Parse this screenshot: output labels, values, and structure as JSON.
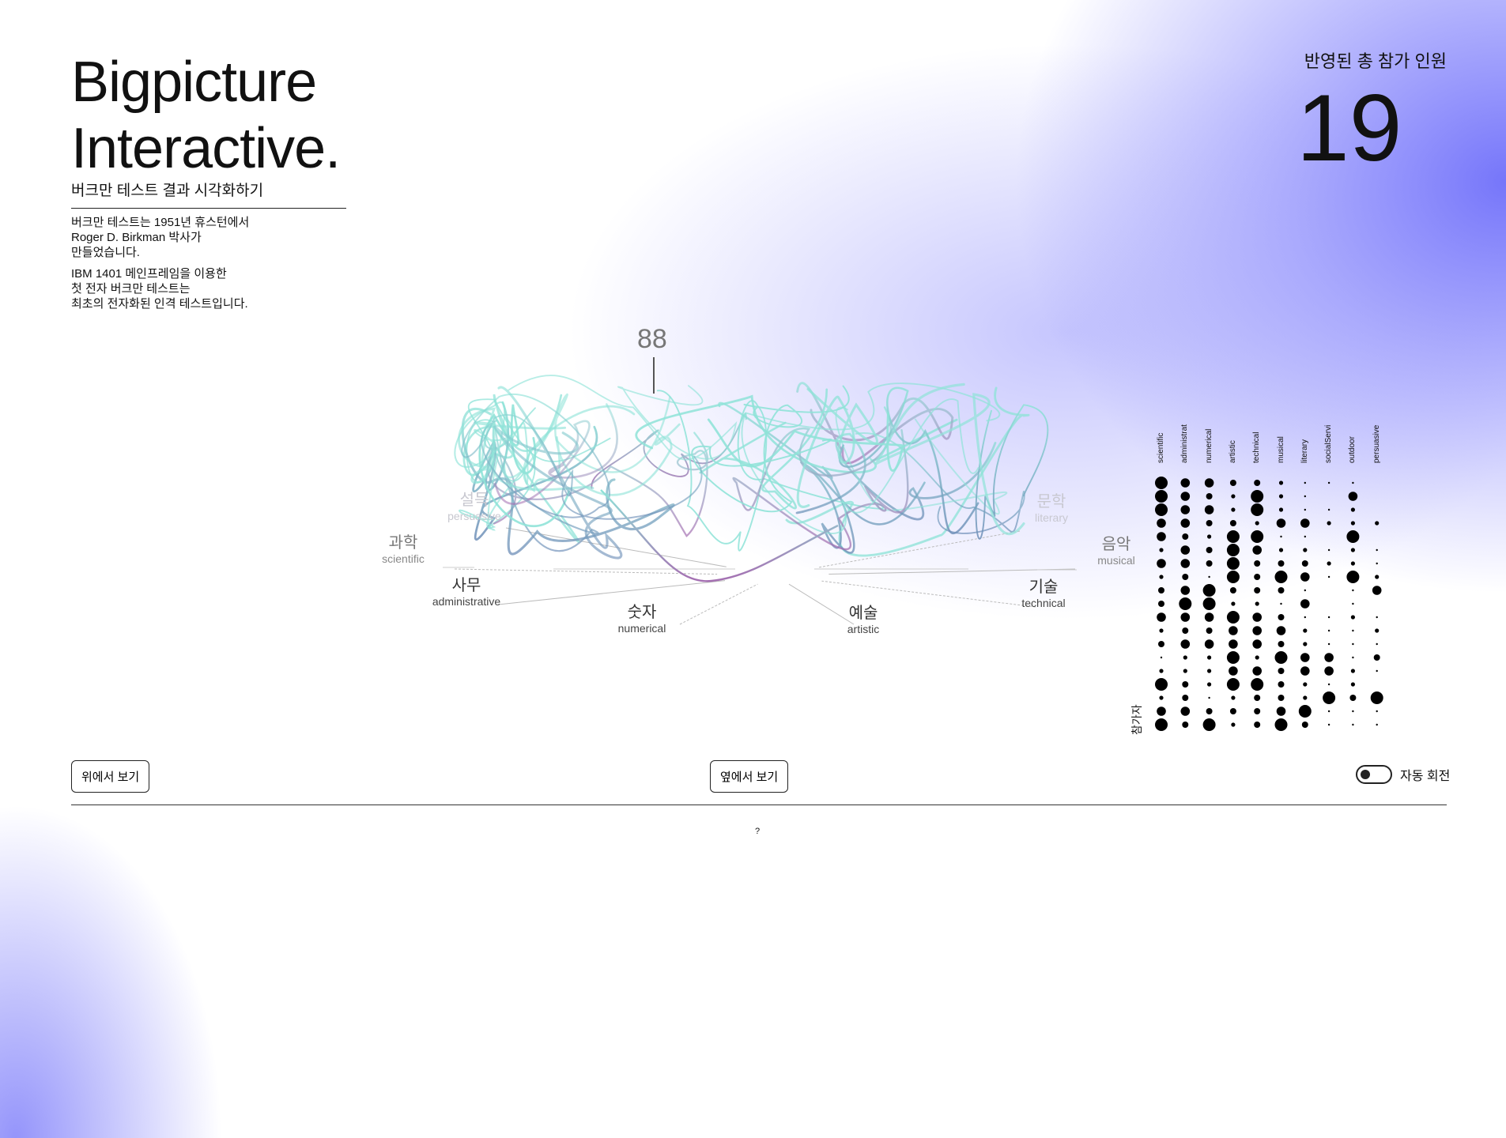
{
  "header": {
    "title_line1": "Bigpicture",
    "title_line2": "Interactive.",
    "subtitle": "버크만 테스트 결과 시각화하기",
    "desc1": "버크만 테스트는 1951년 휴스턴에서\nRoger D. Birkman 박사가\n만들었습니다.",
    "desc2": "IBM 1401 메인프레임을 이용한\n첫 전자 버크만 테스트는\n최초의 전자화된 인격 테스트입니다."
  },
  "stats": {
    "label": "반영된 총 참가 인원",
    "count": "19"
  },
  "visual": {
    "peak_value": "88",
    "axes": [
      {
        "ko": "설득",
        "en": "persuasive",
        "tone": "light"
      },
      {
        "ko": "과학",
        "en": "scientific",
        "tone": "mid"
      },
      {
        "ko": "사무",
        "en": "administrative",
        "tone": "dark"
      },
      {
        "ko": "숫자",
        "en": "numerical",
        "tone": "dark"
      },
      {
        "ko": "예술",
        "en": "artistic",
        "tone": "dark"
      },
      {
        "ko": "기술",
        "en": "technical",
        "tone": "dark"
      },
      {
        "ko": "음악",
        "en": "musical",
        "tone": "mid"
      },
      {
        "ko": "문학",
        "en": "literary",
        "tone": "light"
      }
    ],
    "colors": {
      "teal": "#8fe3d8",
      "blue": "#6f8fb8",
      "purple": "#a56fb2"
    }
  },
  "matrix": {
    "columns": [
      "scientific",
      "administrat",
      "numerical",
      "artistic",
      "technical",
      "musical",
      "literary",
      "socialServi",
      "outdoor",
      "persuasive"
    ],
    "row_label": "참가자",
    "rows": [
      [
        5,
        4,
        4,
        3,
        3,
        2,
        1,
        1,
        1,
        0
      ],
      [
        5,
        4,
        3,
        2,
        5,
        2,
        1,
        0,
        4,
        0
      ],
      [
        5,
        4,
        4,
        2,
        5,
        2,
        1,
        1,
        2,
        0
      ],
      [
        4,
        4,
        3,
        3,
        2,
        4,
        4,
        2,
        2,
        2
      ],
      [
        4,
        3,
        2,
        5,
        5,
        1,
        1,
        0,
        5,
        0
      ],
      [
        2,
        4,
        3,
        5,
        4,
        2,
        2,
        1,
        2,
        1
      ],
      [
        4,
        4,
        3,
        5,
        3,
        3,
        3,
        2,
        2,
        1
      ],
      [
        2,
        3,
        1,
        5,
        3,
        5,
        4,
        1,
        5,
        2
      ],
      [
        3,
        4,
        5,
        3,
        3,
        3,
        1,
        0,
        1,
        4
      ],
      [
        3,
        5,
        5,
        2,
        2,
        1,
        4,
        0,
        1,
        0
      ],
      [
        4,
        4,
        4,
        5,
        4,
        3,
        1,
        1,
        2,
        1
      ],
      [
        2,
        3,
        3,
        4,
        4,
        4,
        2,
        1,
        1,
        2
      ],
      [
        3,
        4,
        4,
        4,
        4,
        3,
        2,
        1,
        1,
        1
      ],
      [
        1,
        2,
        2,
        5,
        2,
        5,
        4,
        4,
        1,
        3
      ],
      [
        2,
        2,
        2,
        4,
        4,
        3,
        4,
        4,
        2,
        1
      ],
      [
        5,
        3,
        2,
        5,
        5,
        3,
        2,
        1,
        2,
        0
      ],
      [
        2,
        3,
        1,
        2,
        3,
        3,
        2,
        5,
        3,
        5
      ],
      [
        4,
        4,
        3,
        3,
        3,
        4,
        5,
        1,
        1,
        1
      ],
      [
        5,
        3,
        5,
        2,
        3,
        5,
        3,
        1,
        1,
        1
      ]
    ]
  },
  "controls": {
    "top_view": "위에서 보기",
    "side_view": "옆에서 보기",
    "auto_rotate": "자동 회전",
    "auto_rotate_on": false,
    "help": "?"
  }
}
